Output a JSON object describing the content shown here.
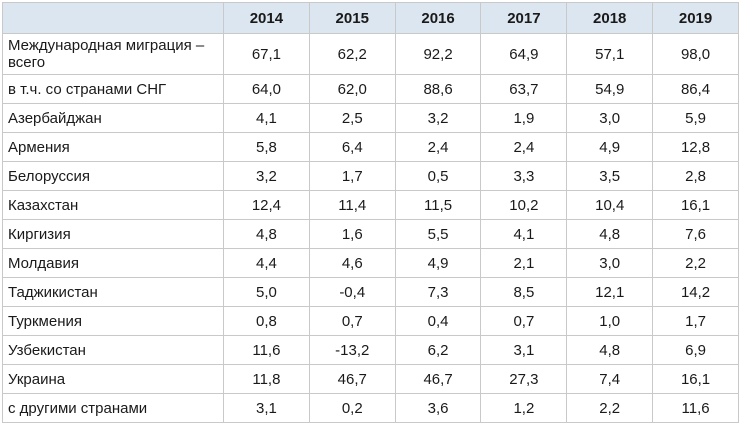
{
  "table": {
    "years": [
      "2014",
      "2015",
      "2016",
      "2017",
      "2018",
      "2019"
    ],
    "rows": [
      {
        "label": "Международная миграция – всего",
        "values": [
          "67,1",
          "62,2",
          "92,2",
          "64,9",
          "57,1",
          "98,0"
        ]
      },
      {
        "label": "в т.ч. со странами СНГ",
        "values": [
          "64,0",
          "62,0",
          "88,6",
          "63,7",
          "54,9",
          "86,4"
        ]
      },
      {
        "label": "Азербайджан",
        "values": [
          "4,1",
          "2,5",
          "3,2",
          "1,9",
          "3,0",
          "5,9"
        ]
      },
      {
        "label": "Армения",
        "values": [
          "5,8",
          "6,4",
          "2,4",
          "2,4",
          "4,9",
          "12,8"
        ]
      },
      {
        "label": "Белоруссия",
        "values": [
          "3,2",
          "1,7",
          "0,5",
          "3,3",
          "3,5",
          "2,8"
        ]
      },
      {
        "label": "Казахстан",
        "values": [
          "12,4",
          "11,4",
          "11,5",
          "10,2",
          "10,4",
          "16,1"
        ]
      },
      {
        "label": "Киргизия",
        "values": [
          "4,8",
          "1,6",
          "5,5",
          "4,1",
          "4,8",
          "7,6"
        ]
      },
      {
        "label": "Молдавия",
        "values": [
          "4,4",
          "4,6",
          "4,9",
          "2,1",
          "3,0",
          "2,2"
        ]
      },
      {
        "label": "Таджикистан",
        "values": [
          "5,0",
          "-0,4",
          "7,3",
          "8,5",
          "12,1",
          "14,2"
        ]
      },
      {
        "label": "Туркмения",
        "values": [
          "0,8",
          "0,7",
          "0,4",
          "0,7",
          "1,0",
          "1,7"
        ]
      },
      {
        "label": "Узбекистан",
        "values": [
          "11,6",
          "-13,2",
          "6,2",
          "3,1",
          "4,8",
          "6,9"
        ]
      },
      {
        "label": "Украина",
        "values": [
          "11,8",
          "46,7",
          "46,7",
          "27,3",
          "7,4",
          "16,1"
        ]
      },
      {
        "label": "с другими странами",
        "values": [
          "3,1",
          "0,2",
          "3,6",
          "1,2",
          "2,2",
          "11,6"
        ]
      }
    ]
  },
  "colors": {
    "header_bg": "#dce6f1",
    "border": "#c9c9c9",
    "text": "#1a1a1a"
  }
}
